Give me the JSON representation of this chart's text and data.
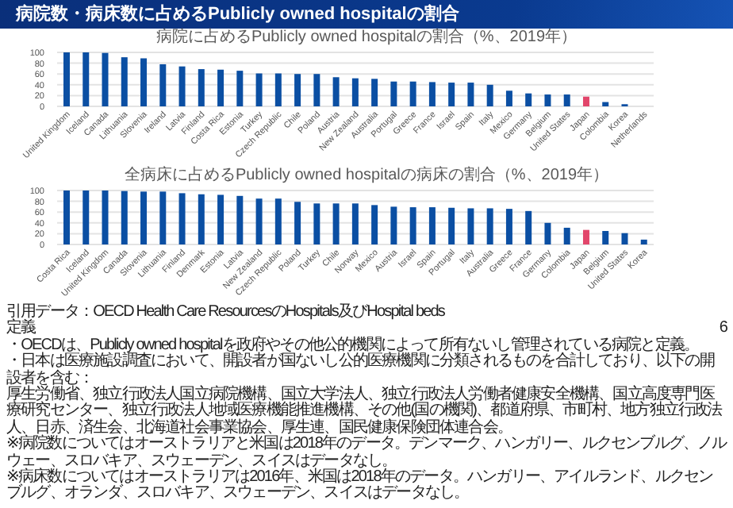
{
  "chart_data": [
    {
      "type": "other",
      "title": "病院数・病床数に占めるPublicly owned hospitalの割合"
    },
    {
      "type": "bar",
      "title": "病院に占めるPublicly owned hospitalの割合（%、2019年）",
      "categories": [
        "United Kingdom",
        "Iceland",
        "Canada",
        "Lithuania",
        "Slovenia",
        "Ireland",
        "Latvia",
        "Finland",
        "Costa Rica",
        "Estonia",
        "Turkey",
        "Czech Republic",
        "Chile",
        "Poland",
        "Austria",
        "New Zealand",
        "Australia",
        "Portugal",
        "Greece",
        "France",
        "Israel",
        "Spain",
        "Italy",
        "Mexico",
        "Germany",
        "Belgium",
        "United States",
        "Japan",
        "Colombia",
        "Korea",
        "Netherlands"
      ],
      "values": [
        100,
        100,
        99,
        91,
        89,
        78,
        74,
        69,
        68,
        66,
        61,
        61,
        60,
        60,
        54,
        52,
        51,
        46,
        46,
        45,
        44,
        44,
        40,
        29,
        24,
        22,
        22,
        18,
        8,
        4,
        0
      ],
      "colors": [
        "#0b4fa3",
        "#0b4fa3",
        "#0b4fa3",
        "#0b4fa3",
        "#0b4fa3",
        "#0b4fa3",
        "#0b4fa3",
        "#0b4fa3",
        "#0b4fa3",
        "#0b4fa3",
        "#0b4fa3",
        "#0b4fa3",
        "#0b4fa3",
        "#0b4fa3",
        "#0b4fa3",
        "#0b4fa3",
        "#0b4fa3",
        "#0b4fa3",
        "#0b4fa3",
        "#0b4fa3",
        "#0b4fa3",
        "#0b4fa3",
        "#0b4fa3",
        "#0b4fa3",
        "#0b4fa3",
        "#0b4fa3",
        "#0b4fa3",
        "#e2466b",
        "#0b4fa3",
        "#0b4fa3",
        "#0b4fa3"
      ],
      "ylim": [
        0,
        100
      ],
      "yticks": [
        0,
        20,
        40,
        60,
        80,
        100
      ],
      "grid": "y"
    },
    {
      "type": "bar",
      "title": "全病床に占めるPublicly owned hospitalの病床の割合（%、2019年）",
      "categories": [
        "Costa Rica",
        "Iceland",
        "United Kingdom",
        "Canada",
        "Slovenia",
        "Lithuania",
        "Finland",
        "Denmark",
        "Estonia",
        "Latvia",
        "New Zealand",
        "Czech Republic",
        "Poland",
        "Turkey",
        "Chile",
        "Norway",
        "Mexico",
        "Austria",
        "Israel",
        "Spain",
        "Portugal",
        "Italy",
        "Australia",
        "Greece",
        "France",
        "Germany",
        "Colombia",
        "Japan",
        "Belgium",
        "United States",
        "Korea"
      ],
      "values": [
        100,
        100,
        100,
        99,
        98,
        98,
        95,
        93,
        92,
        90,
        85,
        85,
        79,
        76,
        76,
        76,
        73,
        70,
        69,
        69,
        68,
        67,
        67,
        66,
        62,
        40,
        31,
        27,
        25,
        21,
        9
      ],
      "colors": [
        "#0b4fa3",
        "#0b4fa3",
        "#0b4fa3",
        "#0b4fa3",
        "#0b4fa3",
        "#0b4fa3",
        "#0b4fa3",
        "#0b4fa3",
        "#0b4fa3",
        "#0b4fa3",
        "#0b4fa3",
        "#0b4fa3",
        "#0b4fa3",
        "#0b4fa3",
        "#0b4fa3",
        "#0b4fa3",
        "#0b4fa3",
        "#0b4fa3",
        "#0b4fa3",
        "#0b4fa3",
        "#0b4fa3",
        "#0b4fa3",
        "#0b4fa3",
        "#0b4fa3",
        "#0b4fa3",
        "#0b4fa3",
        "#0b4fa3",
        "#e2466b",
        "#0b4fa3",
        "#0b4fa3",
        "#0b4fa3"
      ],
      "ylim": [
        0,
        100
      ],
      "yticks": [
        0,
        20,
        40,
        60,
        80,
        100
      ],
      "grid": "y"
    },
    {
      "type": "other",
      "annotations": [
        "引用データ：OECD Health Care ResourcesのHospitals及びHospital beds",
        "定義",
        "・OECDは、Publicly owned hospitalを政府やその他公的機関によって所有ないし管理されている病院と定義。",
        "・日本は医療施設調査において、開設者が国ないし公的医療機関に分類されるものを合計しており、以下の開設者を含む：",
        "厚生労働省、独立行政法人国立病院機構、国立大学法人、独立行政法人労働者健康安全機構、国立高度専門医療研究センター、独立行政法人地域医療機能推進機構、その他(国の機関)、都道府県、市町村、地方独立行政法人、日赤、済生会、北海道社会事業協会、厚生連、国民健康保険団体連合会。",
        "※病院数についてはオーストラリアと米国は2018年のデータ。デンマーク、ハンガリー、ルクセンブルグ、ノルウェー、スロバキア、スウェーデン、スイスはデータなし。",
        "※病床数についてはオーストラリアは2016年、米国は2018年のデータ。ハンガリー、アイルランド、ルクセンブルグ、オランダ、スロバキア、スウェーデン、スイスはデータなし。",
        "6"
      ]
    }
  ]
}
